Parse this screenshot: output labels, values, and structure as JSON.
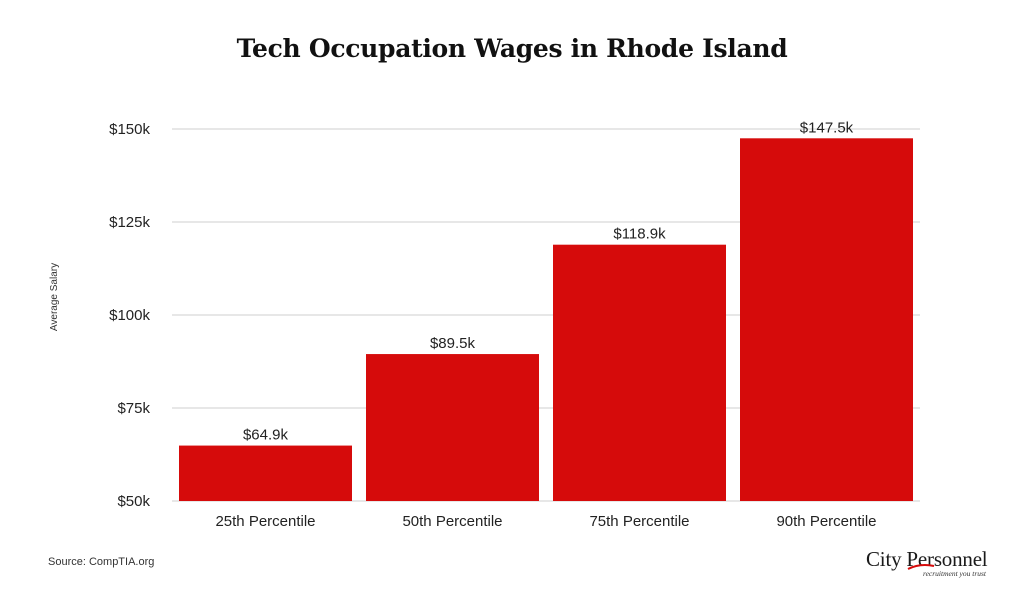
{
  "chart_data": {
    "type": "bar",
    "title": "Tech Occupation Wages in Rhode Island",
    "xlabel": "",
    "ylabel": "Average Salary",
    "categories": [
      "25th Percentile",
      "50th Percentile",
      "75th Percentile",
      "90th Percentile"
    ],
    "values": [
      64.9,
      89.5,
      118.9,
      147.5
    ],
    "value_labels": [
      "$64.9k",
      "$89.5k",
      "$118.9k",
      "$147.5k"
    ],
    "ylim": [
      50,
      150
    ],
    "yticks": [
      50,
      75,
      100,
      125,
      150
    ],
    "ytick_labels": [
      "$50k",
      "$75k",
      "$100k",
      "$125k",
      "$150k"
    ],
    "unit": "thousands of US dollars",
    "bar_color": "#d60b0b",
    "grid": true,
    "legend": "none"
  },
  "source": "Source: CompTIA.org",
  "logo": {
    "text": "City Personnel",
    "tagline": "recruitment you trust",
    "accent_color": "#d60b0b"
  }
}
